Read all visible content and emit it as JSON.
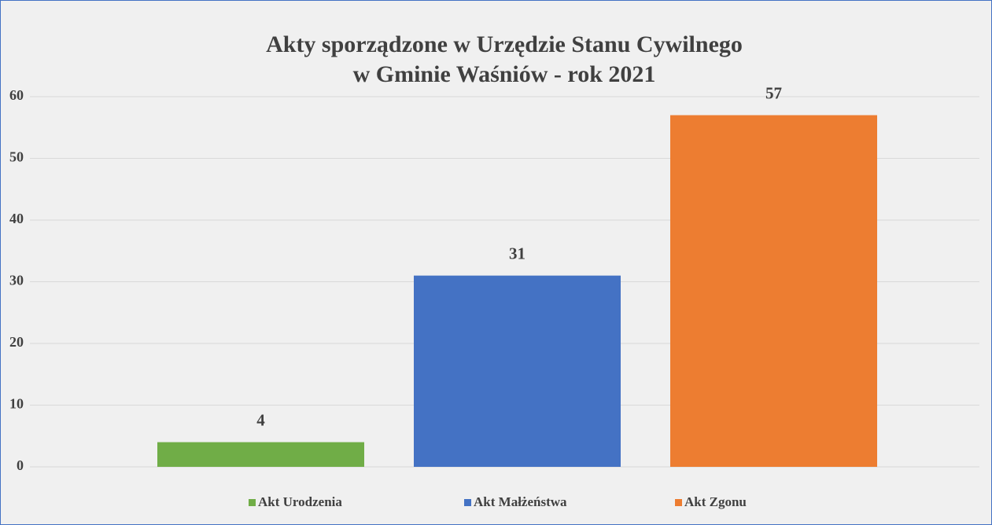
{
  "chart_data": {
    "type": "bar",
    "title": [
      "Akty sporządzone w Urzędzie Stanu Cywilnego",
      "w Gminie Waśniów - rok 2021"
    ],
    "categories": [
      null
    ],
    "series": [
      {
        "name": "Akt Urodzenia",
        "color": "#70ad47",
        "values": [
          4
        ]
      },
      {
        "name": "Akt Małżeństwa",
        "color": "#4472c4",
        "values": [
          31
        ]
      },
      {
        "name": "Akt Zgonu",
        "color": "#ed7d31",
        "values": [
          57
        ]
      }
    ],
    "ylim": [
      0,
      60
    ],
    "yticks": [
      0,
      10,
      20,
      30,
      40,
      50,
      60
    ],
    "grid": true,
    "legend": "bottom"
  }
}
